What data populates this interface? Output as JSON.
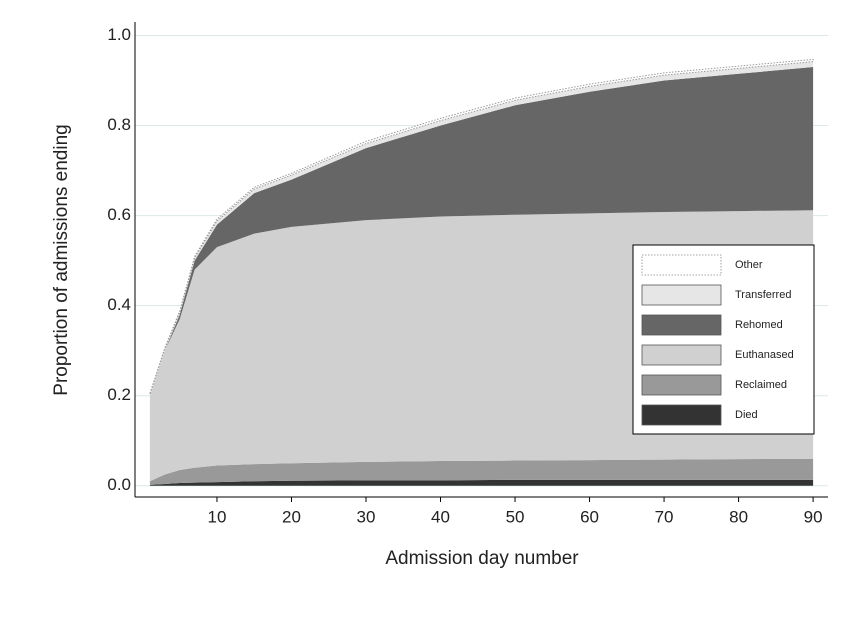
{
  "chart_data": {
    "type": "stacked_area",
    "xlabel": "Admission day number",
    "ylabel": "Proportion of admissions ending",
    "x": [
      1,
      3,
      5,
      7,
      10,
      15,
      20,
      30,
      40,
      50,
      60,
      70,
      80,
      90
    ],
    "series": [
      {
        "name": "Died",
        "color": "#333333",
        "values": [
          0.002,
          0.004,
          0.006,
          0.007,
          0.008,
          0.01,
          0.011,
          0.012,
          0.012,
          0.013,
          0.013,
          0.013,
          0.013,
          0.013
        ]
      },
      {
        "name": "Reclaimed",
        "color": "#999999",
        "values": [
          0.008,
          0.021,
          0.029,
          0.033,
          0.037,
          0.038,
          0.039,
          0.041,
          0.043,
          0.043,
          0.044,
          0.045,
          0.046,
          0.047
        ]
      },
      {
        "name": "Euthanased",
        "color": "#d0d0d0",
        "values": [
          0.19,
          0.275,
          0.335,
          0.44,
          0.485,
          0.512,
          0.525,
          0.537,
          0.543,
          0.546,
          0.548,
          0.55,
          0.551,
          0.552
        ]
      },
      {
        "name": "Rehomed",
        "color": "#666666",
        "values": [
          0,
          0,
          0.01,
          0.02,
          0.05,
          0.09,
          0.105,
          0.16,
          0.202,
          0.243,
          0.27,
          0.292,
          0.305,
          0.318
        ]
      },
      {
        "name": "Transferred",
        "color": "#e6e6e6",
        "values": [
          0.003,
          0.004,
          0.005,
          0.006,
          0.008,
          0.009,
          0.01,
          0.01,
          0.011,
          0.011,
          0.012,
          0.012,
          0.012,
          0.012
        ]
      },
      {
        "name": "Other",
        "color": "#ffffff",
        "line_style": "dotted",
        "values": [
          0.002,
          0.002,
          0.003,
          0.003,
          0.004,
          0.004,
          0.004,
          0.005,
          0.005,
          0.005,
          0.005,
          0.005,
          0.005,
          0.005
        ]
      }
    ],
    "xlim": [
      -1,
      92
    ],
    "xticks": [
      10,
      20,
      30,
      40,
      50,
      60,
      70,
      80,
      90
    ],
    "ylim": [
      -0.025,
      1.03
    ],
    "yticks": [
      {
        "value": 0,
        "label": "0.0"
      },
      0.2,
      0.4,
      0.6,
      0.8,
      {
        "value": 1,
        "label": "1.0"
      }
    ],
    "grid": true,
    "legend": "right"
  }
}
